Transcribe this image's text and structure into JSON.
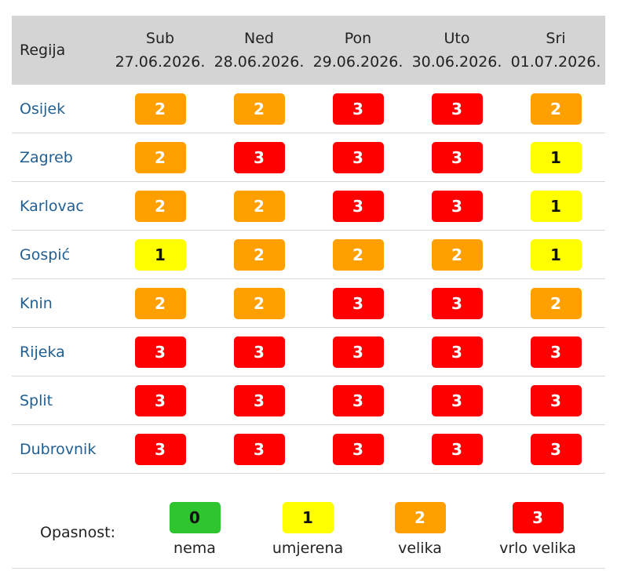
{
  "header": {
    "region_label": "Regija",
    "days": [
      {
        "day": "Sub",
        "date": "27.06.2026."
      },
      {
        "day": "Ned",
        "date": "28.06.2026."
      },
      {
        "day": "Pon",
        "date": "29.06.2026."
      },
      {
        "day": "Uto",
        "date": "30.06.2026."
      },
      {
        "day": "Sri",
        "date": "01.07.2026."
      }
    ]
  },
  "rows": [
    {
      "region": "Osijek",
      "levels": [
        "2",
        "2",
        "3",
        "3",
        "2"
      ]
    },
    {
      "region": "Zagreb",
      "levels": [
        "2",
        "3",
        "3",
        "3",
        "1"
      ]
    },
    {
      "region": "Karlovac",
      "levels": [
        "2",
        "2",
        "3",
        "3",
        "1"
      ]
    },
    {
      "region": "Gospić",
      "levels": [
        "1",
        "2",
        "2",
        "2",
        "1"
      ]
    },
    {
      "region": "Knin",
      "levels": [
        "2",
        "2",
        "3",
        "3",
        "2"
      ]
    },
    {
      "region": "Rijeka",
      "levels": [
        "3",
        "3",
        "3",
        "3",
        "3"
      ]
    },
    {
      "region": "Split",
      "levels": [
        "3",
        "3",
        "3",
        "3",
        "3"
      ]
    },
    {
      "region": "Dubrovnik",
      "levels": [
        "3",
        "3",
        "3",
        "3",
        "3"
      ]
    }
  ],
  "legend": {
    "label": "Opasnost:",
    "items": [
      {
        "value": "0",
        "text": "nema"
      },
      {
        "value": "1",
        "text": "umjerena"
      },
      {
        "value": "2",
        "text": "velika"
      },
      {
        "value": "3",
        "text": "vrlo velika"
      }
    ]
  },
  "colors": {
    "level_0": "#2ec52e",
    "level_1": "#ffff00",
    "level_2": "#ff9f00",
    "level_3": "#ff0000",
    "header_bg": "#d4d4d4",
    "region_link": "#1f5f94"
  }
}
